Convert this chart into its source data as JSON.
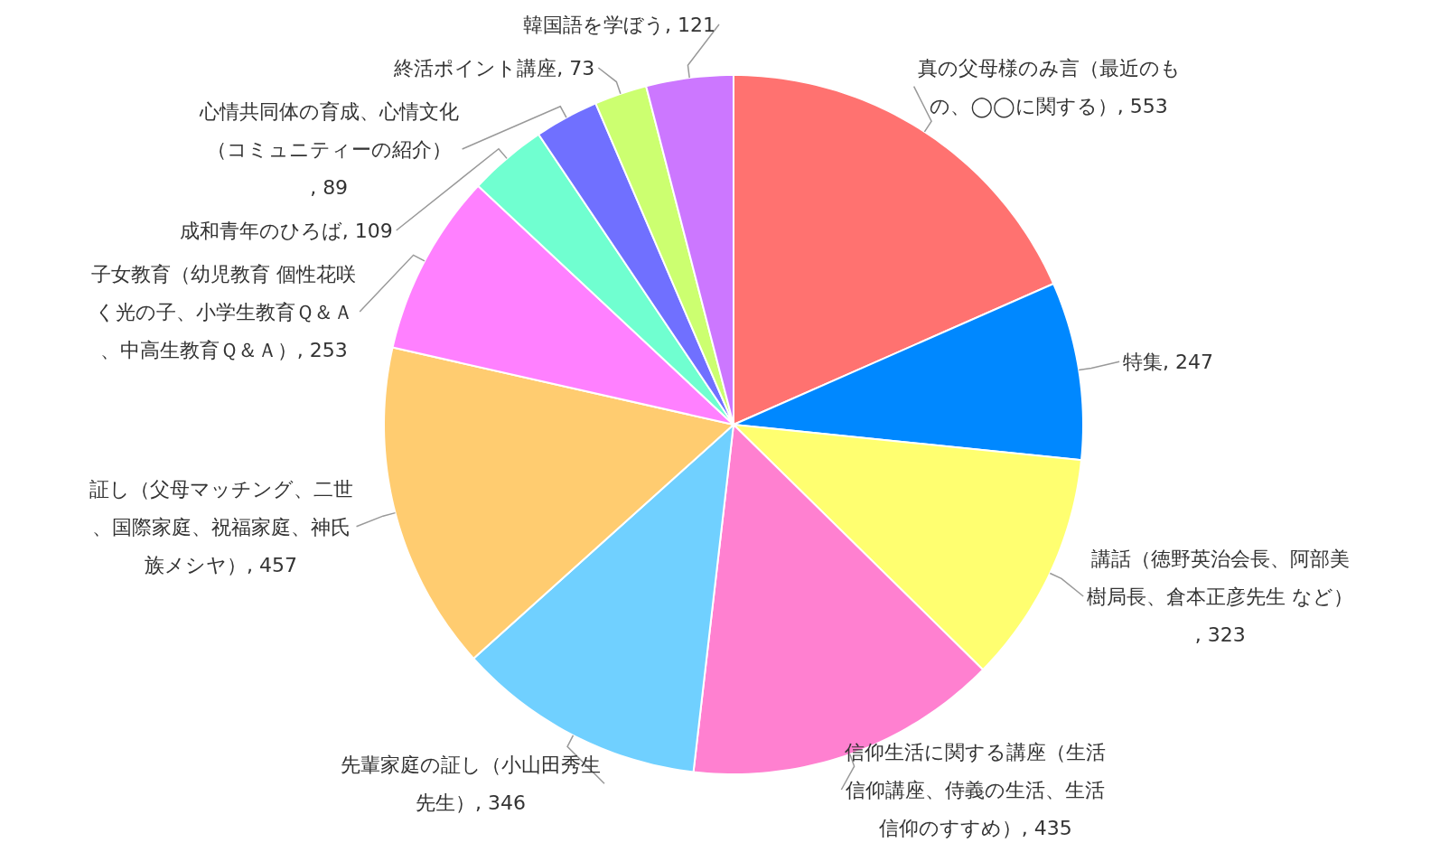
{
  "chart_data": {
    "type": "pie",
    "categories": [
      "真の父母様のみ言（最近のもの、◯◯に関する）, 553",
      "特集, 247",
      "講話（徳野英治会長、阿部美樹局長、倉本正彦先生 など）, 323",
      "信仰生活に関する講座（生活信仰講座、侍義の生活、生活信仰のすすめ）, 435",
      "先輩家庭の証し（小山田秀生先生）, 346",
      "証し（父母マッチング、二世、国際家庭、祝福家庭、神氏族メシヤ）, 457",
      "子女教育（幼児教育 個性花咲く光の子、小学生教育Ｑ＆Ａ、中高生教育Ｑ＆Ａ）, 253",
      "成和青年のひろば, 109",
      "心情共同体の育成、心情文化（コミュニティーの紹介）, 89",
      "終活ポイント講座, 73",
      "韓国語を学ぼう, 121"
    ],
    "values": [
      553,
      247,
      323,
      435,
      346,
      457,
      253,
      109,
      89,
      73,
      121
    ],
    "colors": [
      "#ff7270",
      "#0088ff",
      "#ffff70",
      "#ff80d0",
      "#70d0ff",
      "#ffcc70",
      "#ff80ff",
      "#70ffd0",
      "#7070ff",
      "#ccff70",
      "#cc77ff"
    ]
  }
}
